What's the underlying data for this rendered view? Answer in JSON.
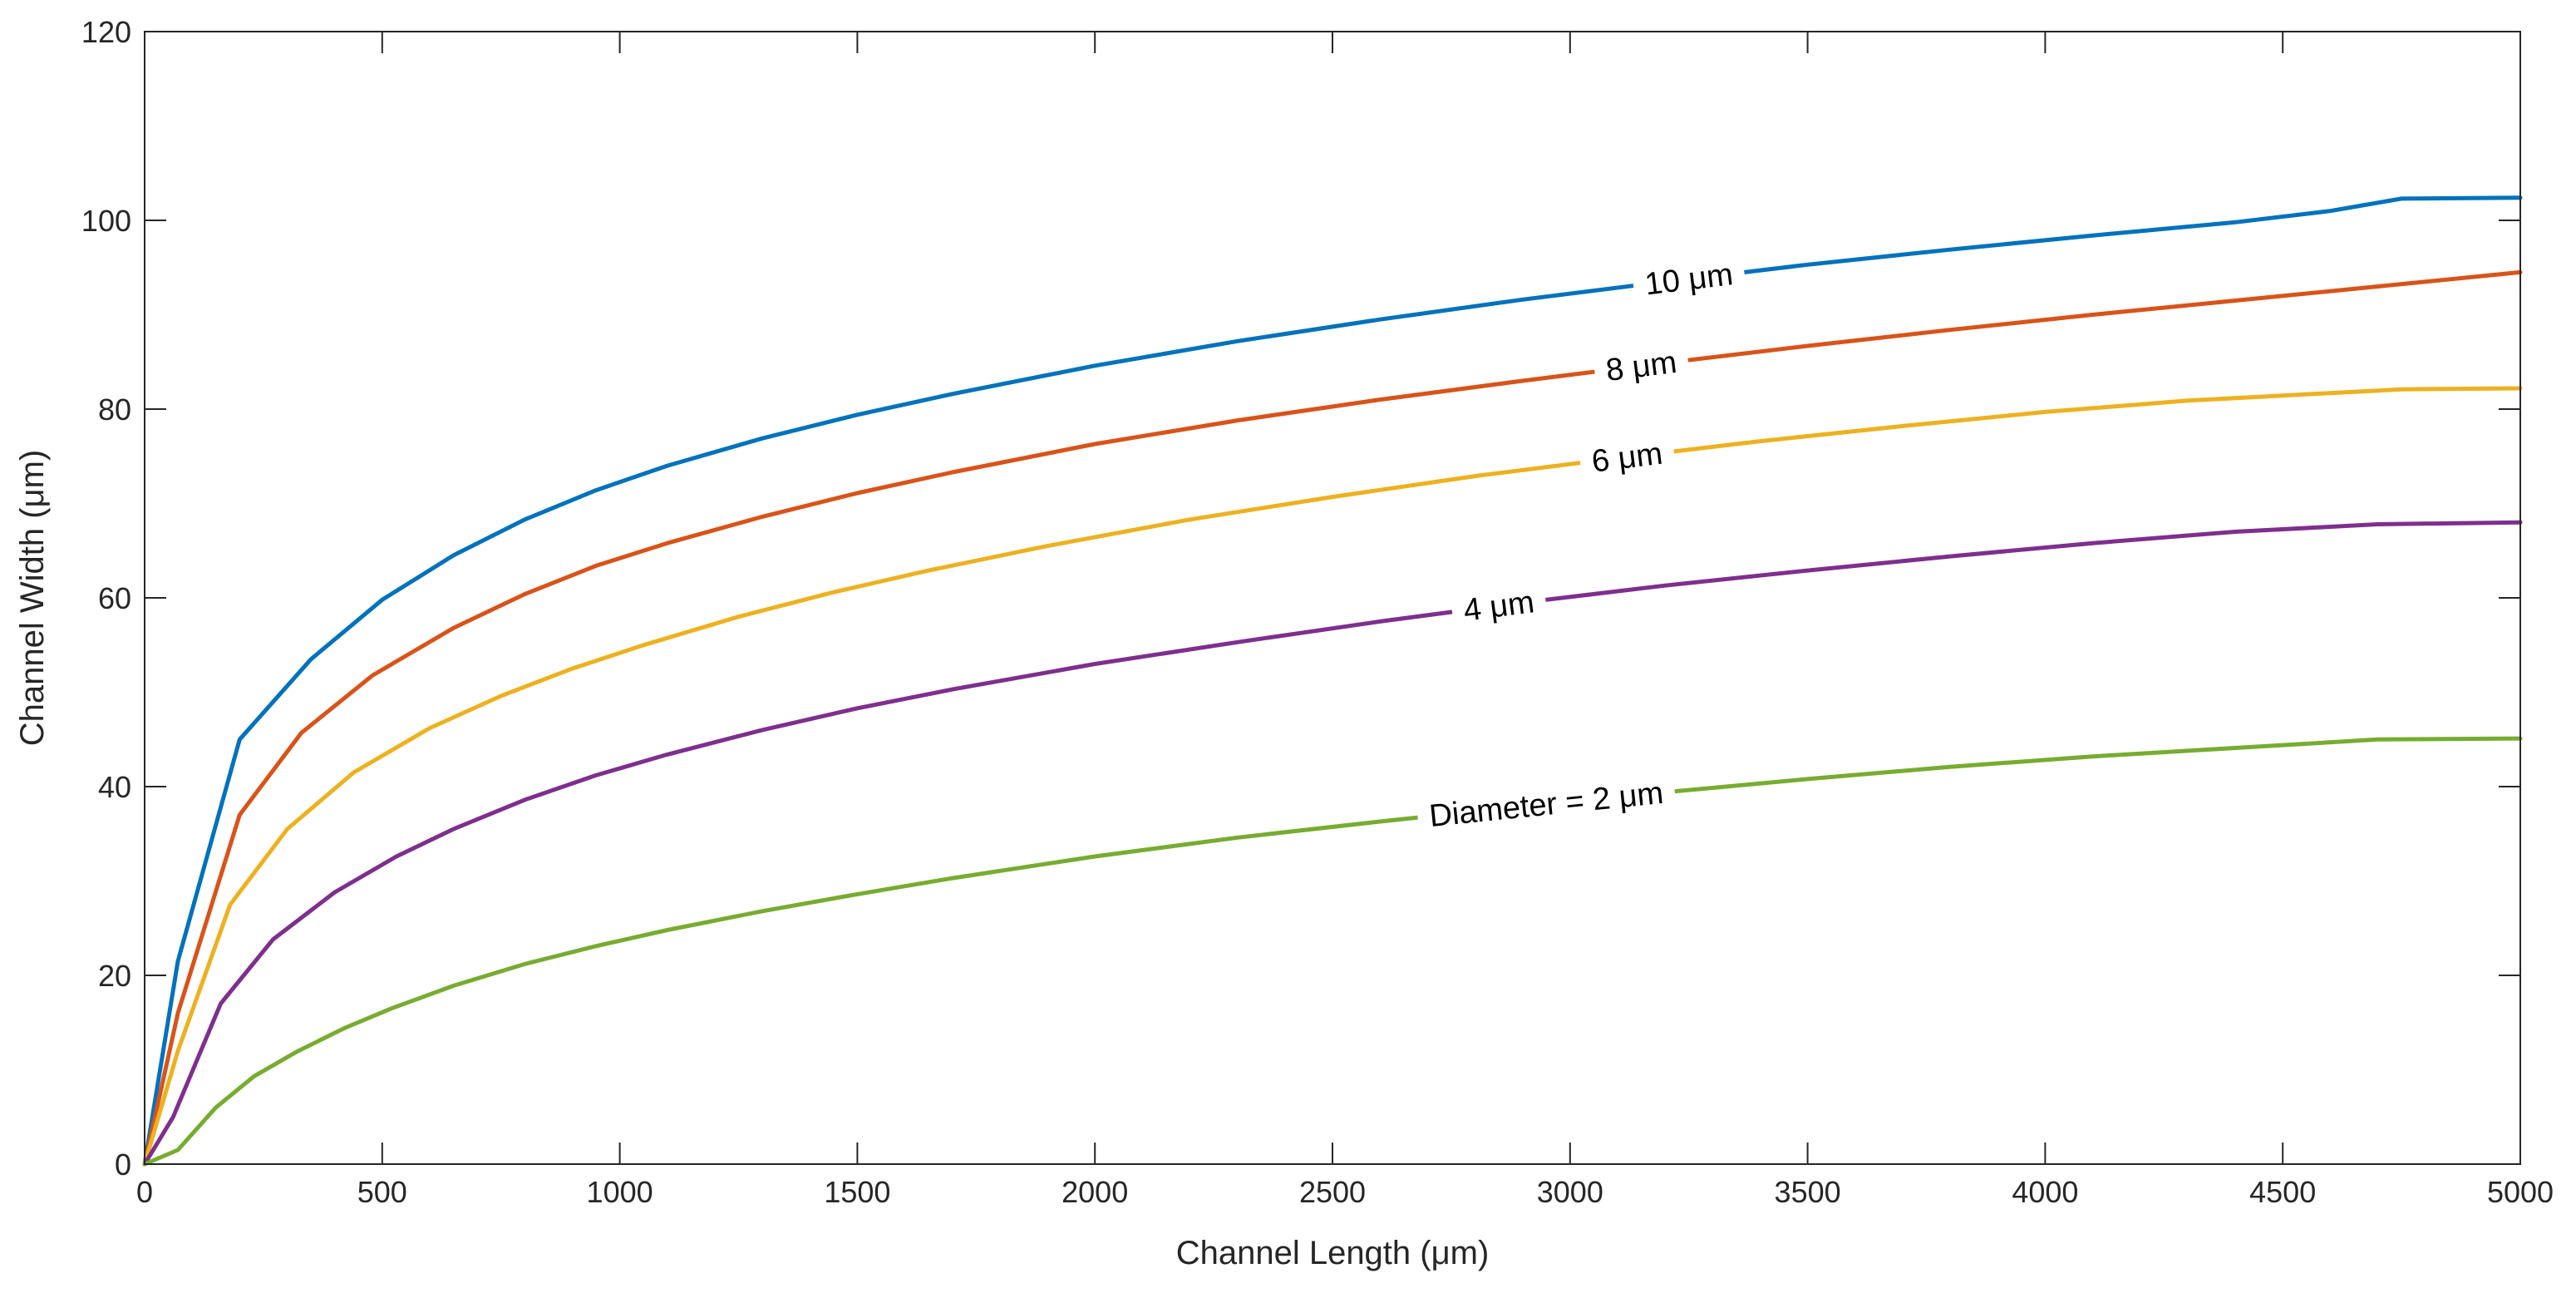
{
  "chart_data": {
    "type": "line",
    "title": "",
    "xlabel": "Channel Length (μm)",
    "ylabel": "Channel Width (μm)",
    "xlim": [
      0,
      5000
    ],
    "ylim": [
      0,
      120
    ],
    "xticks": [
      0,
      500,
      1000,
      1500,
      2000,
      2500,
      3000,
      3500,
      4000,
      4500,
      5000
    ],
    "yticks": [
      0,
      20,
      40,
      60,
      80,
      100,
      120
    ],
    "grid": false,
    "legend": "none (inline contour labels)",
    "series": [
      {
        "name": "10 μm",
        "color": "#0072BD",
        "label_text": "10 μm",
        "label_at": 3250,
        "x": [
          0,
          70,
          200,
          350,
          500,
          650,
          800,
          950,
          1100,
          1300,
          1500,
          1700,
          2000,
          2300,
          2600,
          2900,
          3200,
          3500,
          3800,
          4100,
          4400,
          4600,
          4750,
          5000
        ],
        "y": [
          0,
          21.5,
          45,
          53.5,
          59.8,
          64.5,
          68.3,
          71.4,
          74,
          76.9,
          79.4,
          81.6,
          84.6,
          87.2,
          89.5,
          91.6,
          93.5,
          95.3,
          96.9,
          98.4,
          99.8,
          101,
          102.3,
          102.4
        ]
      },
      {
        "name": "8 μm",
        "color": "#D95319",
        "label_text": "8 μm",
        "label_at": 3150,
        "x": [
          0,
          70,
          200,
          330,
          480,
          650,
          800,
          950,
          1100,
          1300,
          1500,
          1700,
          2000,
          2300,
          2600,
          2900,
          3200,
          3500,
          3800,
          4100,
          4400,
          4700,
          5000
        ],
        "y": [
          0,
          16,
          37,
          45.7,
          51.8,
          56.8,
          60.4,
          63.4,
          65.8,
          68.6,
          71.1,
          73.3,
          76.3,
          78.8,
          81,
          83,
          84.9,
          86.7,
          88.4,
          90,
          91.5,
          93,
          94.5
        ]
      },
      {
        "name": "6 μm",
        "color": "#EDB120",
        "label_text": "6 μm",
        "label_at": 3120,
        "x": [
          0,
          70,
          180,
          300,
          440,
          600,
          750,
          900,
          1050,
          1250,
          1450,
          1650,
          1900,
          2200,
          2500,
          2800,
          3100,
          3400,
          3700,
          4000,
          4300,
          4600,
          4750,
          5000
        ],
        "y": [
          0,
          12,
          27.5,
          35.5,
          41.5,
          46.2,
          49.6,
          52.5,
          55,
          58,
          60.6,
          62.9,
          65.5,
          68.3,
          70.7,
          72.9,
          74.8,
          76.6,
          78.2,
          79.7,
          80.9,
          81.7,
          82.1,
          82.2
        ]
      },
      {
        "name": "4 μm",
        "color": "#7E2F8E",
        "label_text": "4 μm",
        "label_at": 2850,
        "x": [
          0,
          60,
          160,
          270,
          400,
          530,
          650,
          800,
          950,
          1100,
          1300,
          1500,
          1700,
          2000,
          2300,
          2600,
          2900,
          3200,
          3500,
          3800,
          4100,
          4400,
          4700,
          5000
        ],
        "y": [
          0,
          5,
          17,
          23.8,
          28.8,
          32.6,
          35.5,
          38.6,
          41.2,
          43.4,
          46,
          48.3,
          50.3,
          53,
          55.3,
          57.5,
          59.5,
          61.3,
          62.9,
          64.4,
          65.8,
          67,
          67.8,
          68
        ]
      },
      {
        "name": "Diameter = 2 μm",
        "color": "#77AC30",
        "label_text": "Diameter = 2 μm",
        "label_at": 2950,
        "x": [
          0,
          70,
          150,
          230,
          320,
          420,
          520,
          650,
          800,
          950,
          1100,
          1300,
          1500,
          1700,
          2000,
          2300,
          2600,
          2900,
          3200,
          3500,
          3800,
          4100,
          4400,
          4700,
          5000
        ],
        "y": [
          0,
          1.5,
          6,
          9.3,
          11.9,
          14.4,
          16.5,
          18.9,
          21.2,
          23.1,
          24.8,
          26.8,
          28.6,
          30.3,
          32.6,
          34.6,
          36.3,
          37.9,
          39.4,
          40.8,
          42.1,
          43.2,
          44.1,
          45,
          45.1
        ]
      }
    ]
  }
}
